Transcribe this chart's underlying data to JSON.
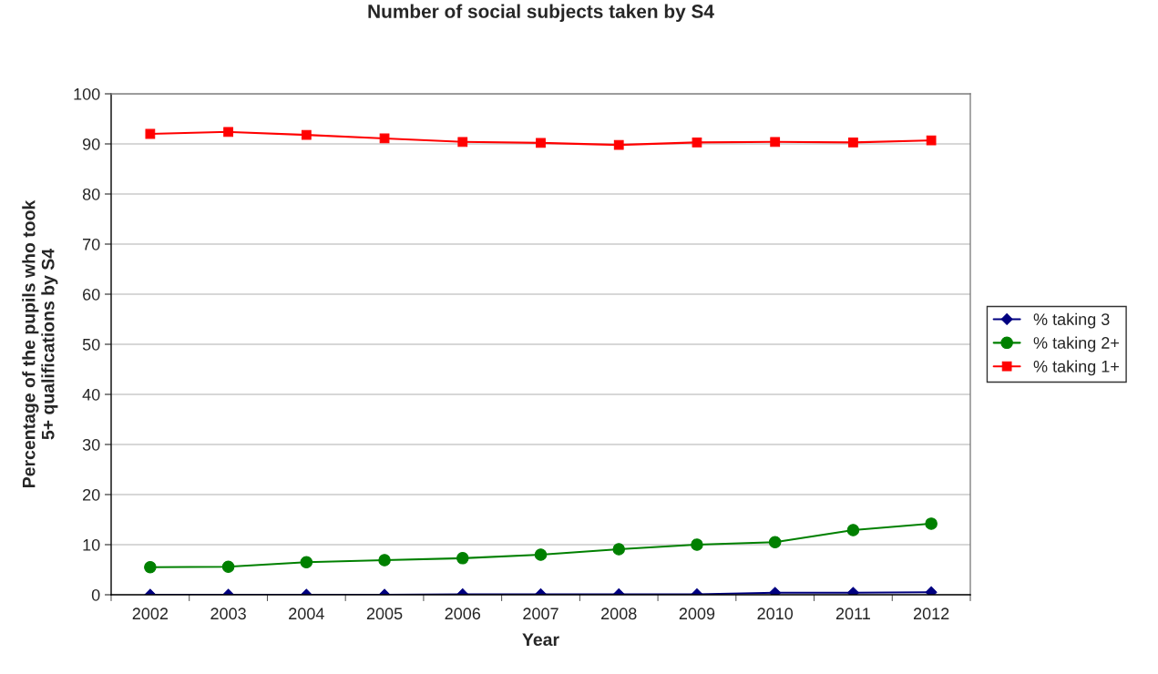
{
  "chart_data": {
    "type": "line",
    "title": "Number of social subjects taken by S4",
    "xlabel": "Year",
    "ylabel": "Percentage of the pupils who took\n5+ qualifications by S4",
    "categories": [
      "2002",
      "2003",
      "2004",
      "2005",
      "2006",
      "2007",
      "2008",
      "2009",
      "2010",
      "2011",
      "2012"
    ],
    "series": [
      {
        "name": "% taking 3",
        "color": "#000080",
        "marker": "diamond",
        "values": [
          0,
          0,
          0,
          0,
          0.1,
          0.1,
          0.1,
          0.1,
          0.4,
          0.4,
          0.5
        ]
      },
      {
        "name": "% taking 2+",
        "color": "#008000",
        "marker": "circle",
        "values": [
          5.5,
          5.6,
          6.5,
          6.9,
          7.3,
          8.0,
          9.1,
          10.0,
          10.5,
          12.9,
          14.2
        ]
      },
      {
        "name": "% taking 1+",
        "color": "#ff0000",
        "marker": "square",
        "values": [
          92.0,
          92.4,
          91.8,
          91.1,
          90.4,
          90.2,
          89.8,
          90.3,
          90.4,
          90.3,
          90.7
        ]
      }
    ],
    "ylim": [
      0,
      100
    ],
    "yticks": [
      0,
      10,
      20,
      30,
      40,
      50,
      60,
      70,
      80,
      90,
      100
    ],
    "grid": "y",
    "legend": "right",
    "line_style": "solid"
  }
}
